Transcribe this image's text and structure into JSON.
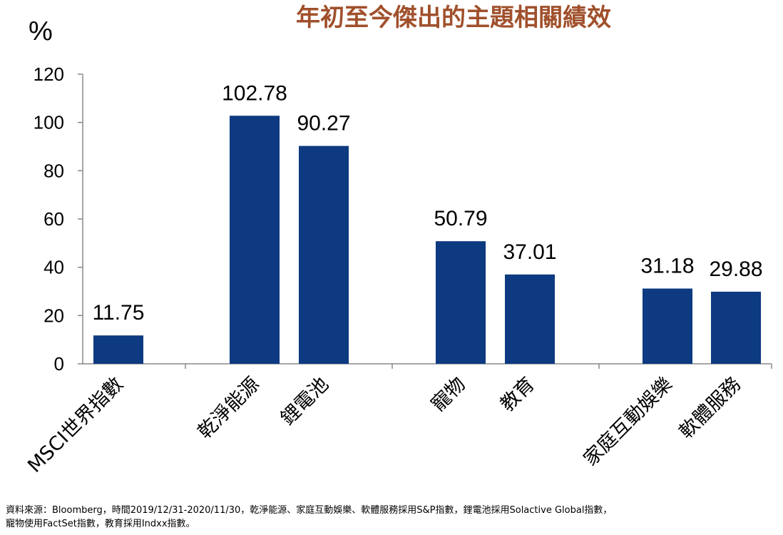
{
  "chart_data": {
    "type": "bar",
    "title": "年初至今傑出的主題相關績效",
    "ylabel": "%",
    "xlabel": "",
    "ylim": [
      0,
      120
    ],
    "yticks": [
      0,
      20,
      40,
      60,
      80,
      100,
      120
    ],
    "grid": false,
    "categories": [
      "MSCI世界指數",
      "乾淨能源",
      "鋰電池",
      "寵物",
      "教育",
      "家庭互動娛樂",
      "軟體服務"
    ],
    "values": [
      11.75,
      102.78,
      90.27,
      50.79,
      37.01,
      31.18,
      29.88
    ],
    "value_labels": [
      "11.75",
      "102.78",
      "90.27",
      "50.79",
      "37.01",
      "31.18",
      "29.88"
    ],
    "bar_color": "#0d3a80",
    "title_color": "#a0502c"
  },
  "source": "資料來源：Bloomberg，時間2019/12/31-2020/11/30，乾淨能源、家庭互動娛樂、軟體服務採用S&P指數，鋰電池採用Solactive Global指數，\n寵物使用FactSet指數，教育採用Indxx指數。"
}
